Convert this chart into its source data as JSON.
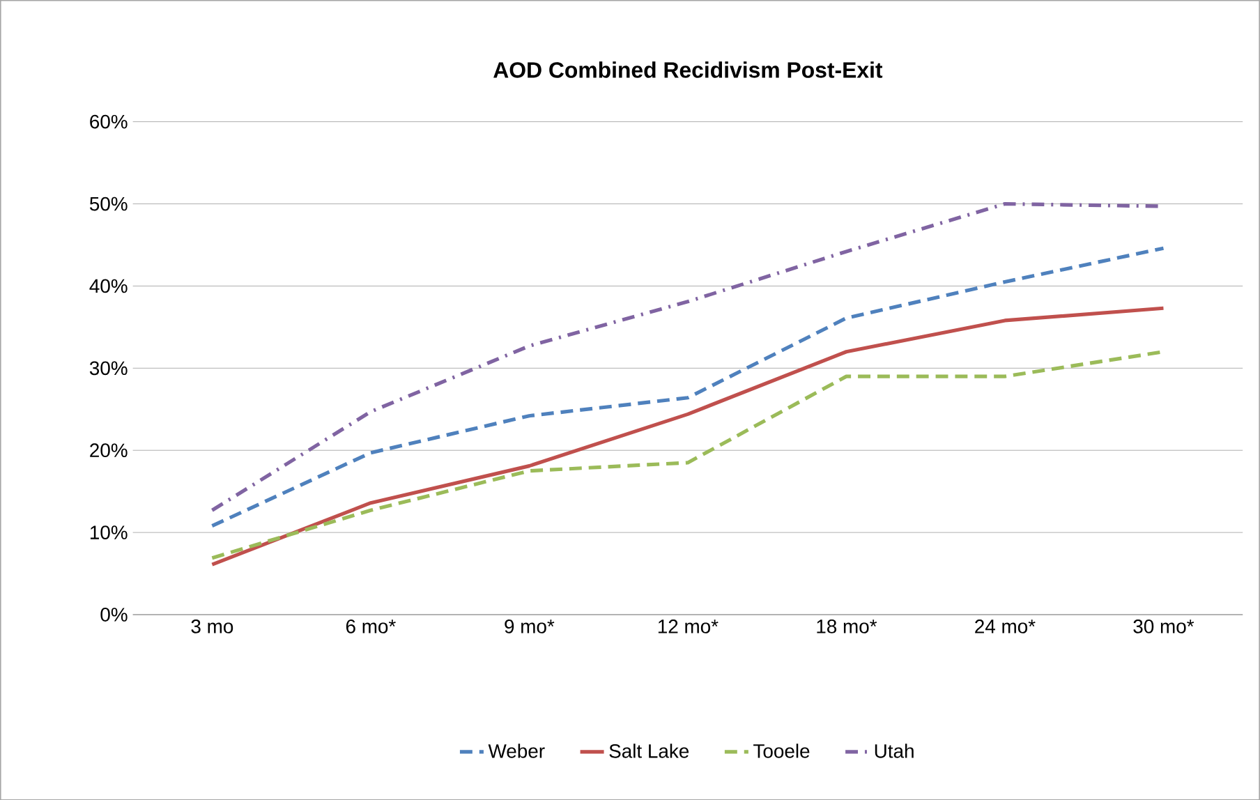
{
  "chart_data": {
    "type": "line",
    "title": "AOD Combined Recidivism Post-Exit",
    "categories": [
      "3 mo",
      "6 mo*",
      "9 mo*",
      "12 mo*",
      "18 mo*",
      "24 mo*",
      "30 mo*"
    ],
    "series": [
      {
        "name": "Weber",
        "color": "#4f81bd",
        "line_style": "dashed",
        "values": [
          10.8,
          19.7,
          24.2,
          26.4,
          36.1,
          40.5,
          44.6
        ]
      },
      {
        "name": "Salt Lake",
        "color": "#c0504d",
        "line_style": "solid",
        "values": [
          6.1,
          13.6,
          18.1,
          24.4,
          32.0,
          35.8,
          37.3
        ]
      },
      {
        "name": "Tooele",
        "color": "#9bbb59",
        "line_style": "dashed",
        "values": [
          6.9,
          12.7,
          17.5,
          18.5,
          29.0,
          29.0,
          32.0
        ]
      },
      {
        "name": "Utah",
        "color": "#8064a2",
        "line_style": "dashdot",
        "values": [
          12.7,
          24.7,
          32.7,
          38.1,
          44.2,
          50.0,
          49.7
        ]
      }
    ],
    "ylim": [
      0,
      60
    ],
    "yticks": [
      {
        "value": 0,
        "label": "0%"
      },
      {
        "value": 10,
        "label": "10%"
      },
      {
        "value": 20,
        "label": "20%"
      },
      {
        "value": 30,
        "label": "30%"
      },
      {
        "value": 40,
        "label": "40%"
      },
      {
        "value": 50,
        "label": "50%"
      },
      {
        "value": 60,
        "label": "60%"
      }
    ],
    "grid": "y",
    "legend": "bottom",
    "marker": "none"
  }
}
